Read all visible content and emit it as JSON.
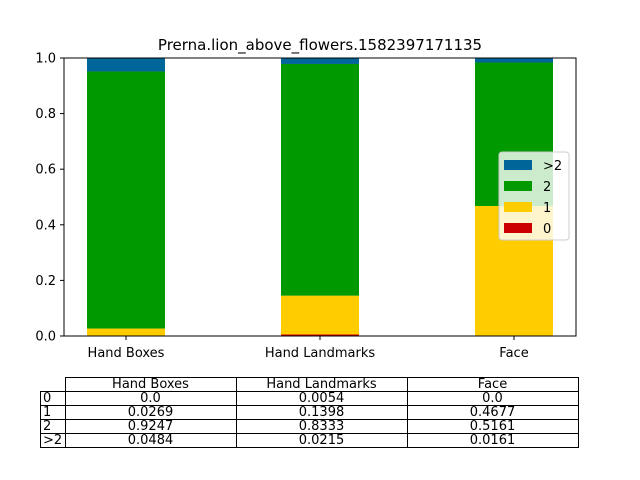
{
  "chart_data": {
    "type": "bar",
    "stacked": true,
    "title": "Prerna.lion_above_flowers.1582397171135",
    "categories": [
      "Hand Boxes",
      "Hand Landmarks",
      "Face"
    ],
    "series": [
      {
        "name": "0",
        "color": "#cc0000",
        "values": [
          0.0,
          0.0054,
          0.0
        ]
      },
      {
        "name": "1",
        "color": "#ffcc00",
        "values": [
          0.0269,
          0.1398,
          0.4677
        ]
      },
      {
        "name": "2",
        "color": "#009900",
        "values": [
          0.9247,
          0.8333,
          0.5161
        ]
      },
      {
        "name": ">2",
        "color": "#006699",
        "values": [
          0.0484,
          0.0215,
          0.0161
        ]
      }
    ],
    "ylim": [
      0,
      1.0
    ],
    "yticks": [
      "0.0",
      "0.2",
      "0.4",
      "0.6",
      "0.8",
      "1.0"
    ],
    "grid": false,
    "legend": {
      "position": "right",
      "order": [
        ">2",
        "2",
        "1",
        "0"
      ]
    },
    "table": {
      "columns": [
        "Hand Boxes",
        "Hand Landmarks",
        "Face"
      ],
      "rows": [
        {
          "label": "0",
          "cells": [
            "0.0",
            "0.0054",
            "0.0"
          ]
        },
        {
          "label": "1",
          "cells": [
            "0.0269",
            "0.1398",
            "0.4677"
          ]
        },
        {
          "label": "2",
          "cells": [
            "0.9247",
            "0.8333",
            "0.5161"
          ]
        },
        {
          "label": ">2",
          "cells": [
            "0.0484",
            "0.0215",
            "0.0161"
          ]
        }
      ]
    }
  }
}
